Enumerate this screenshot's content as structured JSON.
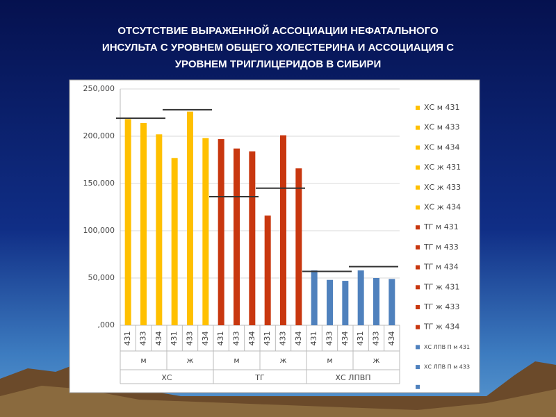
{
  "chart_data": {
    "type": "bar",
    "title": [
      "ОТСУТСТВИЕ ВЫРАЖЕННОЙ АССОЦИАЦИИ НЕФАТАЛЬНОГО",
      "ИНСУЛЬТА С УРОВНЕМ ОБЩЕГО ХОЛЕСТЕРИНА И АССОЦИАЦИЯ С",
      "УРОВНЕМ ТРИГЛИЦЕРИДОВ В СИБИРИ"
    ],
    "ylim": [
      0,
      250000
    ],
    "yticks": [
      {
        "value": 0,
        "label": ",000"
      },
      {
        "value": 50000,
        "label": "50,000"
      },
      {
        "value": 100000,
        "label": "100,000"
      },
      {
        "value": 150000,
        "label": "150,000"
      },
      {
        "value": 200000,
        "label": "200,000"
      },
      {
        "value": 250000,
        "label": "250,000"
      }
    ],
    "grid": true,
    "groups": [
      {
        "name": "ХС",
        "color": "#FFC000",
        "subgroups": [
          {
            "name": "м",
            "codes": [
              "431",
              "433",
              "434"
            ],
            "values": [
              218000,
              214000,
              202000
            ],
            "ref": 219000
          },
          {
            "name": "ж",
            "codes": [
              "431",
              "433",
              "434"
            ],
            "values": [
              177000,
              226000,
              198000
            ],
            "ref": 228000
          }
        ]
      },
      {
        "name": "ТГ",
        "color": "#C8370F",
        "subgroups": [
          {
            "name": "м",
            "codes": [
              "431",
              "433",
              "434"
            ],
            "values": [
              197000,
              187000,
              184000
            ],
            "ref": 136000
          },
          {
            "name": "ж",
            "codes": [
              "431",
              "433",
              "434"
            ],
            "values": [
              116000,
              201000,
              166000
            ],
            "ref": 145000
          }
        ]
      },
      {
        "name": "ХС ЛПВП",
        "color": "#4F81BD",
        "subgroups": [
          {
            "name": "м",
            "codes": [
              "431",
              "433",
              "434"
            ],
            "values": [
              58000,
              48000,
              47000
            ],
            "ref": 57000
          },
          {
            "name": "ж",
            "codes": [
              "431",
              "433",
              "434"
            ],
            "values": [
              58000,
              50000,
              49000
            ],
            "ref": 62000
          }
        ]
      }
    ],
    "legend": [
      {
        "name": "ХС  м 431",
        "color": "#FFC000"
      },
      {
        "name": "ХС  м 433",
        "color": "#FFC000"
      },
      {
        "name": "ХС  м 434",
        "color": "#FFC000"
      },
      {
        "name": "ХС  ж 431",
        "color": "#FFC000"
      },
      {
        "name": "ХС  ж 433",
        "color": "#FFC000"
      },
      {
        "name": "ХС  ж 434",
        "color": "#FFC000"
      },
      {
        "name": "ТГ  м 431",
        "color": "#C8370F"
      },
      {
        "name": "ТГ  м 433",
        "color": "#C8370F"
      },
      {
        "name": "ТГ  м 434",
        "color": "#C8370F"
      },
      {
        "name": "ТГ  ж 431",
        "color": "#C8370F"
      },
      {
        "name": "ТГ  ж 433",
        "color": "#C8370F"
      },
      {
        "name": "ТГ  ж 434",
        "color": "#C8370F"
      },
      {
        "name": "ХС ЛПВ П м 431",
        "color": "#4F81BD"
      },
      {
        "name": "ХС ЛПВ П м 433",
        "color": "#4F81BD"
      },
      {
        "name": null,
        "color": "#4F81BD"
      }
    ]
  }
}
